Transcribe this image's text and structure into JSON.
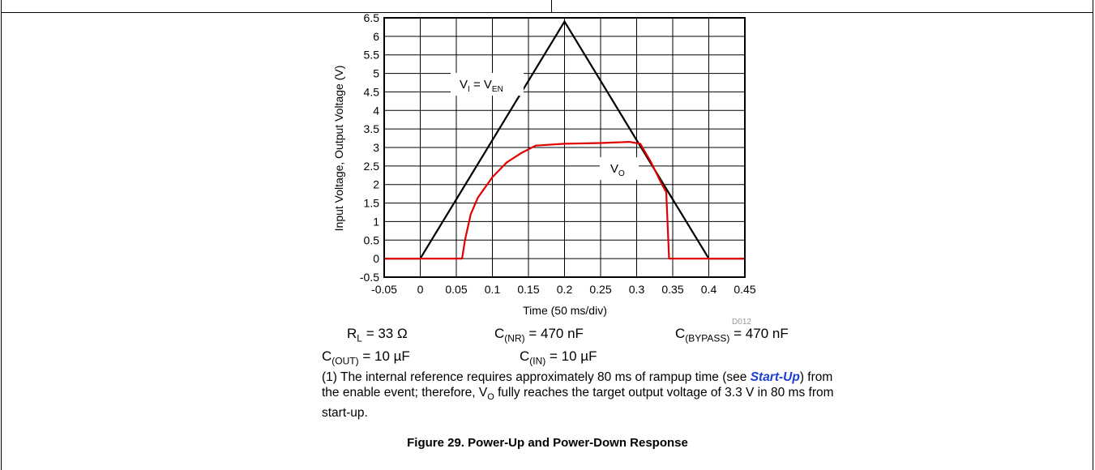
{
  "chart_data": {
    "type": "line",
    "xlabel": "Time (50 ms/div)",
    "ylabel": "Input Voltage, Output Voltage (V)",
    "xlim": [
      -0.05,
      0.45
    ],
    "ylim": [
      -0.5,
      6.5
    ],
    "x_ticks": [
      "-0.05",
      "0",
      "0.05",
      "0.1",
      "0.15",
      "0.2",
      "0.25",
      "0.3",
      "0.35",
      "0.4",
      "0.45"
    ],
    "y_ticks": [
      "6.5",
      "6",
      "5.5",
      "5",
      "4.5",
      "4",
      "3.5",
      "3",
      "2.5",
      "2",
      "1.5",
      "1",
      "0.5",
      "0",
      "-0.5"
    ],
    "grid": true,
    "figure_id": "D012",
    "series": [
      {
        "name_main": "V",
        "name_sub": "I",
        "name_eq": " = V",
        "name_sub2": "EN",
        "color": "#000000",
        "x": [
          -0.05,
          -0.02,
          0.0,
          0.05,
          0.1,
          0.15,
          0.2,
          0.25,
          0.3,
          0.35,
          0.4,
          0.42,
          0.45
        ],
        "y": [
          0.0,
          0.0,
          0.0,
          1.6,
          3.2,
          4.8,
          6.4,
          4.8,
          3.2,
          1.6,
          0.0,
          0.0,
          0.0
        ]
      },
      {
        "name_main": "V",
        "name_sub": "O",
        "color": "#e00000",
        "x": [
          -0.05,
          0.0,
          0.058,
          0.062,
          0.07,
          0.08,
          0.1,
          0.12,
          0.14,
          0.16,
          0.2,
          0.25,
          0.29,
          0.305,
          0.32,
          0.335,
          0.341,
          0.345,
          0.38,
          0.45
        ],
        "y": [
          0.0,
          0.0,
          0.0,
          0.5,
          1.2,
          1.65,
          2.2,
          2.6,
          2.85,
          3.05,
          3.1,
          3.12,
          3.15,
          3.1,
          2.6,
          2.0,
          1.8,
          0.0,
          0.0,
          0.0
        ]
      }
    ]
  },
  "conditions": {
    "rl_main": "R",
    "rl_sub": "L",
    "rl_val": " = 33 Ω",
    "cnr_main": "C",
    "cnr_sub": "(NR)",
    "cnr_val": " = 470 nF",
    "cbyp_main": "C",
    "cbyp_sub": "(BYPASS)",
    "cbyp_val": " = 470 nF",
    "cout_main": "C",
    "cout_sub": "(OUT)",
    "cout_val": " = 10 µF",
    "cin_main": "C",
    "cin_sub": "(IN)",
    "cin_val": " = 10 µF"
  },
  "note": {
    "part1": "(1) The internal reference requires approximately 80 ms of rampup time (see ",
    "link": "Start-Up",
    "part2": ") from the enable event; therefore, V",
    "sub": "O",
    "part3": " fully reaches the target output voltage of 3.3 V in 80 ms from start-up."
  },
  "caption": "Figure 29. Power-Up and Power-Down Response"
}
